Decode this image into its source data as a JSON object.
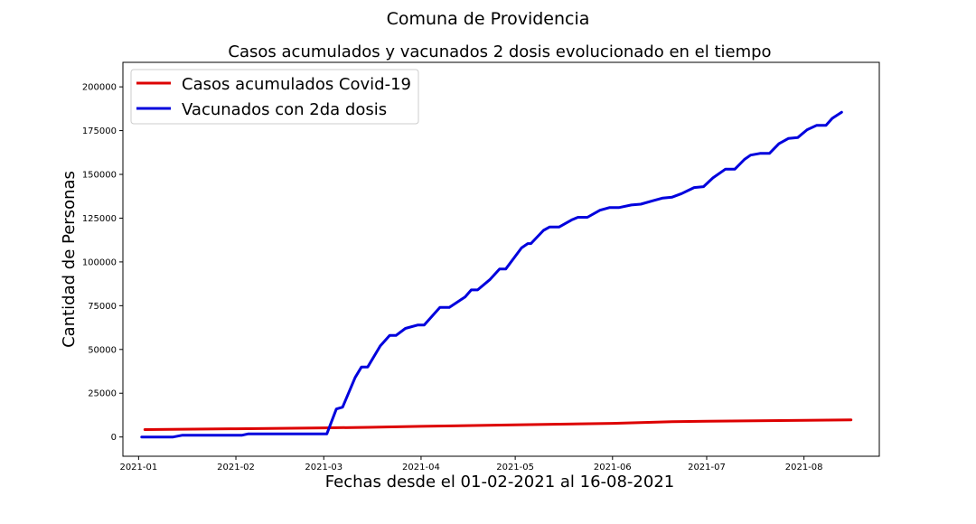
{
  "figure": {
    "suptitle": "Comuna de Providencia"
  },
  "chart_data": {
    "type": "line",
    "title": "Casos acumulados y vacunados 2 dosis evolucionado en el tiempo",
    "xlabel": "Fechas desde el 01-02-2021 al 16-08-2021",
    "ylabel": "Cantidad de Personas",
    "x_ticks": [
      "2021-01",
      "2021-02",
      "2021-03",
      "2021-04",
      "2021-05",
      "2021-06",
      "2021-07",
      "2021-08"
    ],
    "y_ticks": [
      0,
      25000,
      50000,
      75000,
      100000,
      125000,
      150000,
      175000,
      200000
    ],
    "xlim": [
      "2020-12-27",
      "2021-08-25"
    ],
    "ylim": [
      -11000,
      214000
    ],
    "grid": false,
    "legend_position": "upper left",
    "series": [
      {
        "name": "Casos acumulados Covid-19",
        "color": "#dd0000",
        "points": [
          [
            "2021-01-03",
            4200
          ],
          [
            "2021-02-01",
            4700
          ],
          [
            "2021-03-01",
            5200
          ],
          [
            "2021-03-15",
            5500
          ],
          [
            "2021-04-01",
            6100
          ],
          [
            "2021-05-01",
            6900
          ],
          [
            "2021-06-01",
            7800
          ],
          [
            "2021-06-20",
            8700
          ],
          [
            "2021-07-01",
            9000
          ],
          [
            "2021-08-01",
            9500
          ],
          [
            "2021-08-16",
            9800
          ]
        ]
      },
      {
        "name": "Vacunados con 2da dosis",
        "color": "#0000dd",
        "points": [
          [
            "2021-01-02",
            0
          ],
          [
            "2021-01-12",
            0
          ],
          [
            "2021-01-15",
            1000
          ],
          [
            "2021-02-03",
            1000
          ],
          [
            "2021-02-05",
            1800
          ],
          [
            "2021-03-02",
            1800
          ],
          [
            "2021-03-05",
            16000
          ],
          [
            "2021-03-07",
            17000
          ],
          [
            "2021-03-11",
            34000
          ],
          [
            "2021-03-13",
            40000
          ],
          [
            "2021-03-15",
            40000
          ],
          [
            "2021-03-19",
            52000
          ],
          [
            "2021-03-22",
            58000
          ],
          [
            "2021-03-24",
            58000
          ],
          [
            "2021-03-27",
            62000
          ],
          [
            "2021-03-31",
            64000
          ],
          [
            "2021-04-02",
            64000
          ],
          [
            "2021-04-07",
            74000
          ],
          [
            "2021-04-10",
            74000
          ],
          [
            "2021-04-15",
            80000
          ],
          [
            "2021-04-17",
            84000
          ],
          [
            "2021-04-19",
            84000
          ],
          [
            "2021-04-23",
            90000
          ],
          [
            "2021-04-26",
            96000
          ],
          [
            "2021-04-28",
            96000
          ],
          [
            "2021-05-03",
            108000
          ],
          [
            "2021-05-05",
            110500
          ],
          [
            "2021-05-06",
            110500
          ],
          [
            "2021-05-10",
            118000
          ],
          [
            "2021-05-12",
            120000
          ],
          [
            "2021-05-15",
            120000
          ],
          [
            "2021-05-19",
            124000
          ],
          [
            "2021-05-21",
            125500
          ],
          [
            "2021-05-24",
            125500
          ],
          [
            "2021-05-28",
            129500
          ],
          [
            "2021-05-31",
            131000
          ],
          [
            "2021-06-03",
            131000
          ],
          [
            "2021-06-07",
            132500
          ],
          [
            "2021-06-10",
            133000
          ],
          [
            "2021-06-14",
            135000
          ],
          [
            "2021-06-17",
            136500
          ],
          [
            "2021-06-20",
            137000
          ],
          [
            "2021-06-23",
            139000
          ],
          [
            "2021-06-27",
            142500
          ],
          [
            "2021-06-30",
            143000
          ],
          [
            "2021-07-03",
            148000
          ],
          [
            "2021-07-07",
            153000
          ],
          [
            "2021-07-10",
            153000
          ],
          [
            "2021-07-13",
            158500
          ],
          [
            "2021-07-15",
            161000
          ],
          [
            "2021-07-18",
            162000
          ],
          [
            "2021-07-21",
            162000
          ],
          [
            "2021-07-24",
            167500
          ],
          [
            "2021-07-27",
            170500
          ],
          [
            "2021-07-30",
            171000
          ],
          [
            "2021-08-02",
            175500
          ],
          [
            "2021-08-05",
            178000
          ],
          [
            "2021-08-08",
            178000
          ],
          [
            "2021-08-10",
            182000
          ],
          [
            "2021-08-13",
            185500
          ]
        ]
      }
    ]
  }
}
